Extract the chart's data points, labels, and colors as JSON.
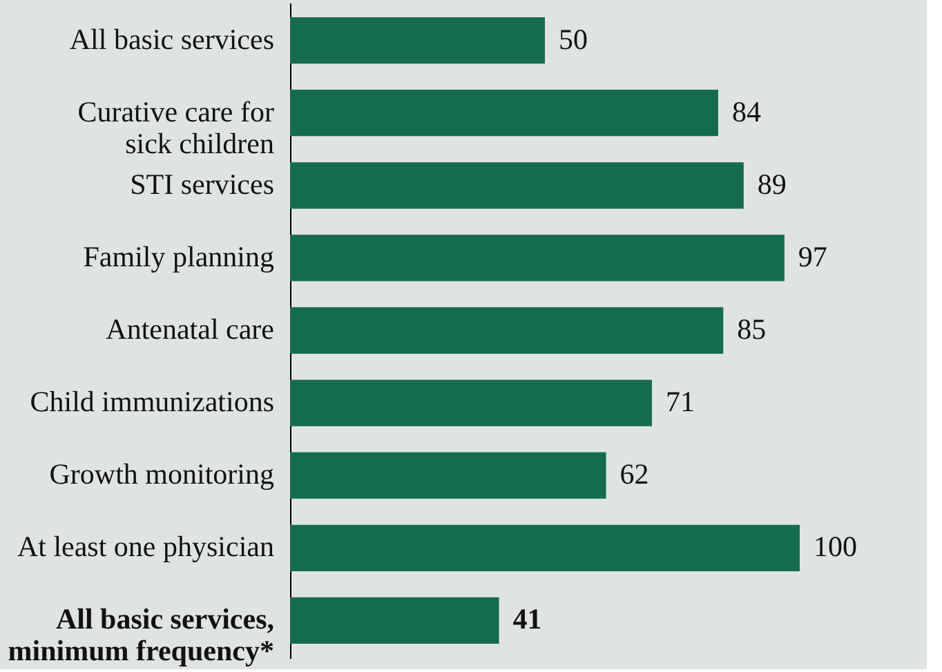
{
  "chart_data": {
    "type": "bar",
    "orientation": "horizontal",
    "categories": [
      "All basic services",
      "Curative care for\nsick children",
      "STI services",
      "Family planning",
      "Antenatal care",
      "Child immunizations",
      "Growth monitoring",
      "At least one physician",
      "All basic services,\nminimum frequency*"
    ],
    "values": [
      50,
      84,
      89,
      97,
      85,
      71,
      62,
      100,
      41
    ],
    "color": "#156b50",
    "data_labels": true,
    "xlim": [
      0,
      100
    ],
    "tick_labels": "y"
  }
}
